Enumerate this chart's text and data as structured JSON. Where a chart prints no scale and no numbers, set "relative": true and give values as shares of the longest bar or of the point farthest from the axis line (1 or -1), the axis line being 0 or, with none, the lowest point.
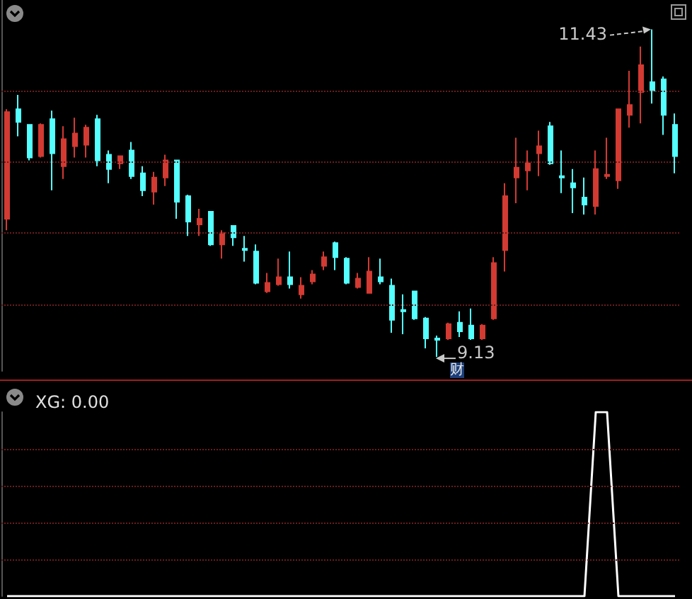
{
  "chart_data": [
    {
      "type": "candlestick",
      "categories": [
        null,
        null,
        null,
        null,
        null,
        null,
        null,
        null,
        null,
        null,
        null,
        null,
        null,
        null,
        null,
        null,
        null,
        null,
        null,
        null,
        null,
        null,
        null,
        null,
        null,
        null,
        null,
        null,
        null,
        null,
        null,
        null,
        null,
        null,
        null,
        null,
        null,
        null,
        null,
        null,
        null,
        null,
        null,
        null,
        null,
        null,
        null,
        null,
        null,
        null,
        null,
        null,
        null,
        null,
        null,
        null,
        null,
        null,
        null,
        null
      ],
      "ohlc": [
        [
          10.1,
          10.87,
          10.02,
          10.85
        ],
        [
          10.87,
          10.97,
          10.68,
          10.78
        ],
        [
          10.76,
          10.76,
          10.51,
          10.53
        ],
        [
          10.54,
          10.77,
          10.53,
          10.76
        ],
        [
          10.8,
          10.86,
          10.3,
          10.56
        ],
        [
          10.47,
          10.75,
          10.38,
          10.66
        ],
        [
          10.61,
          10.81,
          10.53,
          10.7
        ],
        [
          10.62,
          10.76,
          10.53,
          10.74
        ],
        [
          10.8,
          10.83,
          10.47,
          10.51
        ],
        [
          10.55,
          10.58,
          10.35,
          10.45
        ],
        [
          10.49,
          10.54,
          10.45,
          10.54
        ],
        [
          10.58,
          10.64,
          10.38,
          10.4
        ],
        [
          10.42,
          10.47,
          10.26,
          10.3
        ],
        [
          10.29,
          10.43,
          10.2,
          10.39
        ],
        [
          10.39,
          10.55,
          10.33,
          10.51
        ],
        [
          10.51,
          10.51,
          10.1,
          10.22
        ],
        [
          10.26,
          10.27,
          9.98,
          10.08
        ],
        [
          10.06,
          10.17,
          9.98,
          10.1
        ],
        [
          10.15,
          10.15,
          9.91,
          9.92
        ],
        [
          9.92,
          10.02,
          9.82,
          10.0
        ],
        [
          10.05,
          10.05,
          9.91,
          9.97
        ],
        [
          9.89,
          9.98,
          9.8,
          9.88
        ],
        [
          9.87,
          9.92,
          9.64,
          9.65
        ],
        [
          9.59,
          9.72,
          9.58,
          9.65
        ],
        [
          9.64,
          9.82,
          9.63,
          9.69
        ],
        [
          9.69,
          9.87,
          9.61,
          9.64
        ],
        [
          9.57,
          9.69,
          9.54,
          9.63
        ],
        [
          9.66,
          9.74,
          9.64,
          9.71
        ],
        [
          9.77,
          9.87,
          9.74,
          9.83
        ],
        [
          9.93,
          9.94,
          9.74,
          9.83
        ],
        [
          9.82,
          9.83,
          9.64,
          9.65
        ],
        [
          9.62,
          9.72,
          9.61,
          9.68
        ],
        [
          9.58,
          9.83,
          9.58,
          9.73
        ],
        [
          9.69,
          9.82,
          9.64,
          9.66
        ],
        [
          9.63,
          9.68,
          9.3,
          9.39
        ],
        [
          9.46,
          9.57,
          9.29,
          9.45
        ],
        [
          9.59,
          9.59,
          9.39,
          9.4
        ],
        [
          9.4,
          9.41,
          9.19,
          9.26
        ],
        [
          9.26,
          9.28,
          9.13,
          9.25
        ],
        [
          9.26,
          9.37,
          9.25,
          9.36
        ],
        [
          9.37,
          9.45,
          9.27,
          9.31
        ],
        [
          9.35,
          9.47,
          9.25,
          9.26
        ],
        [
          9.26,
          9.36,
          9.25,
          9.35
        ],
        [
          9.4,
          9.83,
          9.39,
          9.79
        ],
        [
          9.88,
          10.35,
          9.73,
          10.26
        ],
        [
          10.39,
          10.67,
          10.21,
          10.46
        ],
        [
          10.44,
          10.58,
          10.3,
          10.49
        ],
        [
          10.56,
          10.72,
          10.4,
          10.61
        ],
        [
          10.75,
          10.78,
          10.48,
          10.49
        ],
        [
          10.4,
          10.58,
          10.28,
          10.39
        ],
        [
          10.35,
          10.45,
          10.14,
          10.32
        ],
        [
          10.25,
          10.39,
          10.13,
          10.2
        ],
        [
          10.19,
          10.58,
          10.13,
          10.45
        ],
        [
          10.4,
          10.67,
          10.38,
          10.41
        ],
        [
          10.37,
          10.87,
          10.31,
          10.87
        ],
        [
          10.83,
          11.14,
          10.74,
          10.9
        ],
        [
          10.99,
          11.31,
          10.77,
          11.18
        ],
        [
          11.06,
          11.43,
          10.91,
          11.0
        ],
        [
          11.08,
          11.1,
          10.69,
          10.83
        ],
        [
          10.76,
          10.84,
          10.42,
          10.54
        ]
      ],
      "colors": [
        "#d23a32",
        "#54ffff",
        "#54ffff",
        "#d23a32",
        "#54ffff",
        "#d23a32",
        "#d23a32",
        "#d23a32",
        "#54ffff",
        "#54ffff",
        "#d23a32",
        "#54ffff",
        "#54ffff",
        "#d23a32",
        "#d23a32",
        "#54ffff",
        "#54ffff",
        "#d23a32",
        "#54ffff",
        "#d23a32",
        "#54ffff",
        "#54ffff",
        "#54ffff",
        "#d23a32",
        "#d23a32",
        "#54ffff",
        "#d23a32",
        "#d23a32",
        "#d23a32",
        "#54ffff",
        "#54ffff",
        "#d23a32",
        "#d23a32",
        "#54ffff",
        "#54ffff",
        "#54ffff",
        "#54ffff",
        "#54ffff",
        "#54ffff",
        "#d23a32",
        "#54ffff",
        "#54ffff",
        "#d23a32",
        "#d23a32",
        "#d23a32",
        "#d23a32",
        "#d23a32",
        "#d23a32",
        "#54ffff",
        "#54ffff",
        "#54ffff",
        "#54ffff",
        "#d23a32",
        "#d23a32",
        "#d23a32",
        "#d23a32",
        "#d23a32",
        "#54ffff",
        "#54ffff",
        "#54ffff"
      ],
      "ref_lines": [
        {
          "axis": "y",
          "value": 9.5,
          "color": "#6a1c1c",
          "line_style": "dotted"
        },
        {
          "axis": "y",
          "value": 10,
          "color": "#6a1c1c",
          "line_style": "dotted"
        },
        {
          "axis": "y",
          "value": 10.5,
          "color": "#6a1c1c",
          "line_style": "dotted"
        },
        {
          "axis": "y",
          "value": 11,
          "color": "#6a1c1c",
          "line_style": "dotted"
        }
      ],
      "annotations": [
        "11.43",
        "9.13",
        "财"
      ]
    },
    {
      "type": "line",
      "title": "XG: 0.00",
      "relative": true,
      "categories": [
        null,
        null,
        null,
        null,
        null,
        null,
        null,
        null,
        null,
        null,
        null,
        null,
        null,
        null,
        null,
        null,
        null,
        null,
        null,
        null,
        null,
        null,
        null,
        null,
        null,
        null,
        null,
        null,
        null,
        null,
        null,
        null,
        null,
        null,
        null,
        null,
        null,
        null,
        null,
        null,
        null,
        null,
        null,
        null,
        null,
        null,
        null,
        null,
        null,
        null,
        null,
        null,
        null,
        null,
        null,
        null,
        null,
        null,
        null,
        null
      ],
      "series": [
        {
          "color": "#ffffff",
          "values": [
            0,
            0,
            0,
            0,
            0,
            0,
            0,
            0,
            0,
            0,
            0,
            0,
            0,
            0,
            0,
            0,
            0,
            0,
            0,
            0,
            0,
            0,
            0,
            0,
            0,
            0,
            0,
            0,
            0,
            0,
            0,
            0,
            0,
            0,
            0,
            0,
            0,
            0,
            0,
            0,
            0,
            0,
            0,
            0,
            0,
            0,
            0,
            0,
            0,
            0,
            0,
            0,
            1,
            1,
            0,
            0,
            0,
            0,
            0,
            0
          ]
        }
      ],
      "ref_lines": [
        {
          "axis": "y",
          "value": 0.2,
          "color": "#6a1c1c",
          "line_style": "dotted"
        },
        {
          "axis": "y",
          "value": 0.4,
          "color": "#6a1c1c",
          "line_style": "dotted"
        },
        {
          "axis": "y",
          "value": 0.6,
          "color": "#6a1c1c",
          "line_style": "dotted"
        },
        {
          "axis": "y",
          "value": 0.8,
          "color": "#6a1c1c",
          "line_style": "dotted"
        }
      ],
      "marker": "none"
    }
  ]
}
